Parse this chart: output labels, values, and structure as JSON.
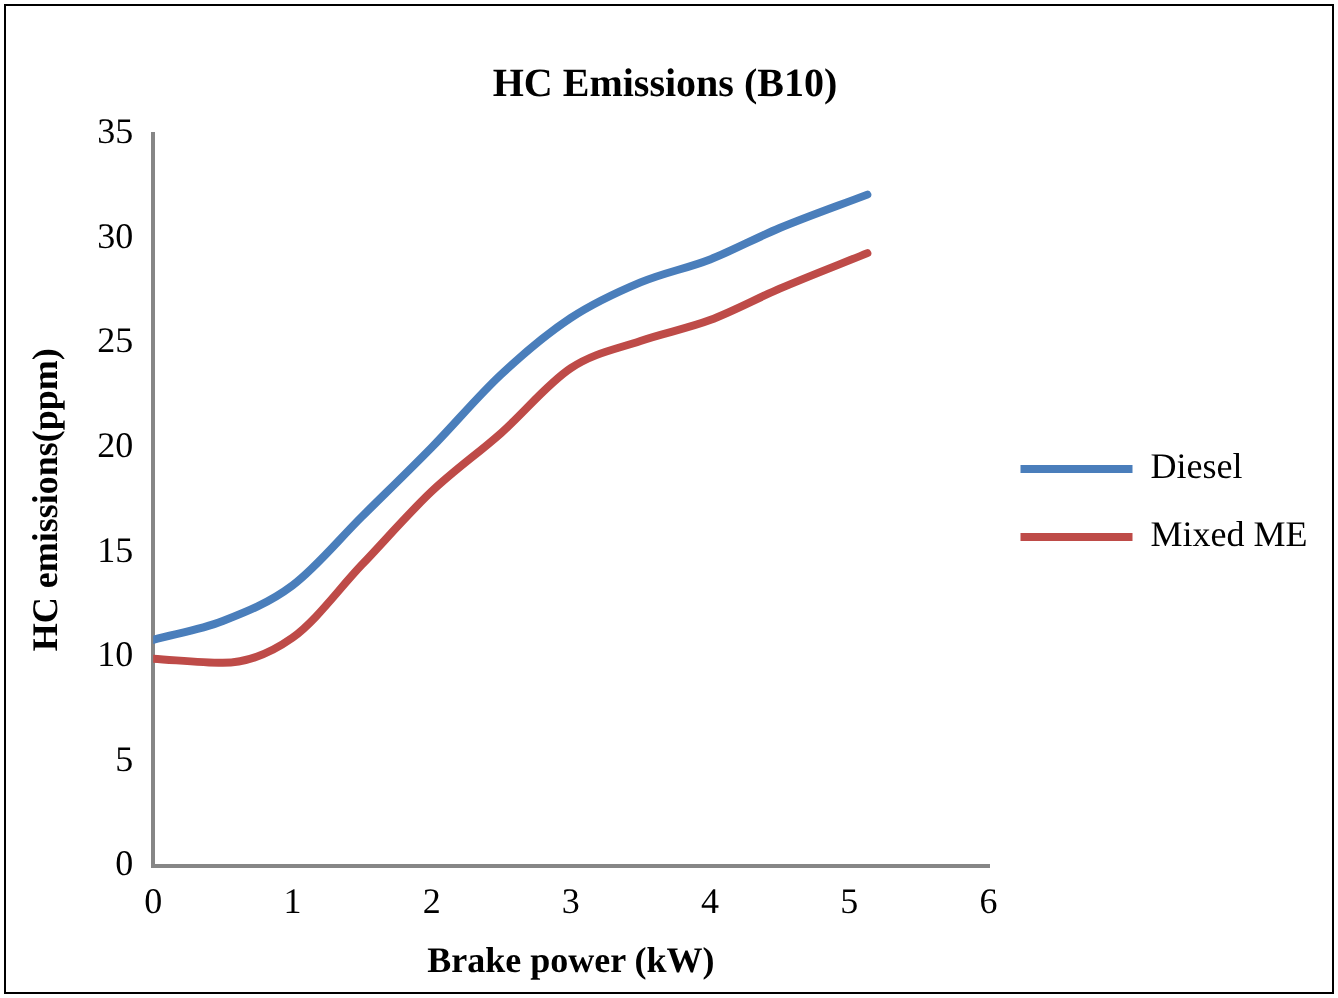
{
  "chart_data": {
    "type": "line",
    "title": "HC Emissions (B10)",
    "xlabel": "Brake power (kW)",
    "ylabel": "HC emissions(ppm)",
    "x": [
      0,
      0.5,
      1,
      1.5,
      2,
      2.5,
      3,
      3.5,
      4,
      4.5,
      5.13
    ],
    "series": [
      {
        "name": "Diesel",
        "color": "#4a7ebb",
        "values": [
          10.8,
          11.7,
          13.4,
          16.7,
          20.0,
          23.5,
          26.2,
          27.9,
          29.0,
          30.5,
          32.1
        ]
      },
      {
        "name": "Mixed ME",
        "color": "#be4b48",
        "values": [
          9.9,
          9.7,
          10.9,
          14.4,
          17.9,
          20.7,
          23.8,
          25.1,
          26.1,
          27.6,
          29.3
        ]
      }
    ],
    "xlim": [
      0,
      6
    ],
    "xticks": [
      0,
      1,
      2,
      3,
      4,
      5,
      6
    ],
    "ylim": [
      0,
      35
    ],
    "yticks": [
      0,
      5,
      10,
      15,
      20,
      25,
      30,
      35
    ],
    "grid": false,
    "legend": "right",
    "marker": "none",
    "line_style": "solid"
  }
}
